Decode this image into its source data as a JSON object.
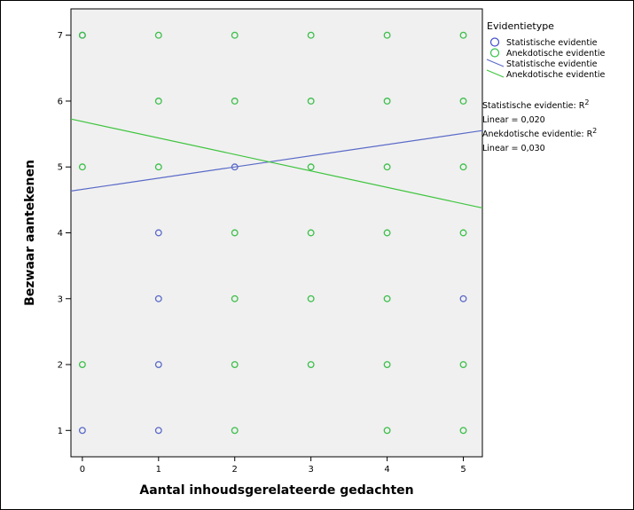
{
  "chart_data": {
    "type": "scatter",
    "xlabel": "Aantal inhoudsgerelateerde gedachten",
    "ylabel": "Bezwaar aantekenen",
    "xlim": [
      -0.15,
      5.25
    ],
    "ylim": [
      0.6,
      7.4
    ],
    "xticks": [
      "0",
      "1",
      "2",
      "3",
      "4",
      "5"
    ],
    "yticks": [
      "1",
      "2",
      "3",
      "4",
      "5",
      "6",
      "7"
    ],
    "legend": {
      "title": "Evidentietype",
      "placement": "right",
      "entries": [
        {
          "label": "Statistische evidentie",
          "kind": "marker",
          "color": "#3f4fd0"
        },
        {
          "label": "Anekdotische evidentie",
          "kind": "marker",
          "color": "#33c24a"
        },
        {
          "label": "Statistische evidentie",
          "kind": "line",
          "color": "#5a6ac8"
        },
        {
          "label": "Anekdotische evidentie",
          "kind": "line",
          "color": "#3dc43d"
        }
      ]
    },
    "rsq_annotations": [
      {
        "label": "Statistische evidentie: R",
        "sup": "2",
        "value": "Linear = 0,020"
      },
      {
        "label": "Anekdotische evidentie: R",
        "sup": "2",
        "value": "Linear = 0,030"
      }
    ],
    "series": [
      {
        "name": "Statistische evidentie",
        "color": "#5a6ac8",
        "points": [
          [
            0,
            7
          ],
          [
            0,
            1
          ],
          [
            1,
            4
          ],
          [
            1,
            3
          ],
          [
            1,
            2
          ],
          [
            1,
            1
          ],
          [
            2,
            5
          ],
          [
            5,
            3
          ]
        ]
      },
      {
        "name": "Anekdotische evidentie",
        "color": "#3dbf4a",
        "points": [
          [
            0,
            7
          ],
          [
            0,
            5
          ],
          [
            0,
            2
          ],
          [
            1,
            7
          ],
          [
            1,
            6
          ],
          [
            1,
            5
          ],
          [
            2,
            7
          ],
          [
            2,
            6
          ],
          [
            2,
            4
          ],
          [
            2,
            3
          ],
          [
            2,
            2
          ],
          [
            2,
            1
          ],
          [
            3,
            7
          ],
          [
            3,
            6
          ],
          [
            3,
            5
          ],
          [
            3,
            4
          ],
          [
            3,
            3
          ],
          [
            3,
            2
          ],
          [
            4,
            7
          ],
          [
            4,
            6
          ],
          [
            4,
            5
          ],
          [
            4,
            4
          ],
          [
            4,
            3
          ],
          [
            4,
            2
          ],
          [
            4,
            1
          ],
          [
            5,
            7
          ],
          [
            5,
            6
          ],
          [
            5,
            5
          ],
          [
            5,
            4
          ],
          [
            5,
            2
          ],
          [
            5,
            1
          ]
        ]
      }
    ],
    "fit_lines": [
      {
        "name": "Statistische evidentie",
        "color": "#5a6ac8",
        "intercept": 4.66,
        "slope": 0.17
      },
      {
        "name": "Anekdotische evidentie",
        "color": "#3dc43d",
        "intercept": 5.69,
        "slope": -0.25
      }
    ]
  }
}
